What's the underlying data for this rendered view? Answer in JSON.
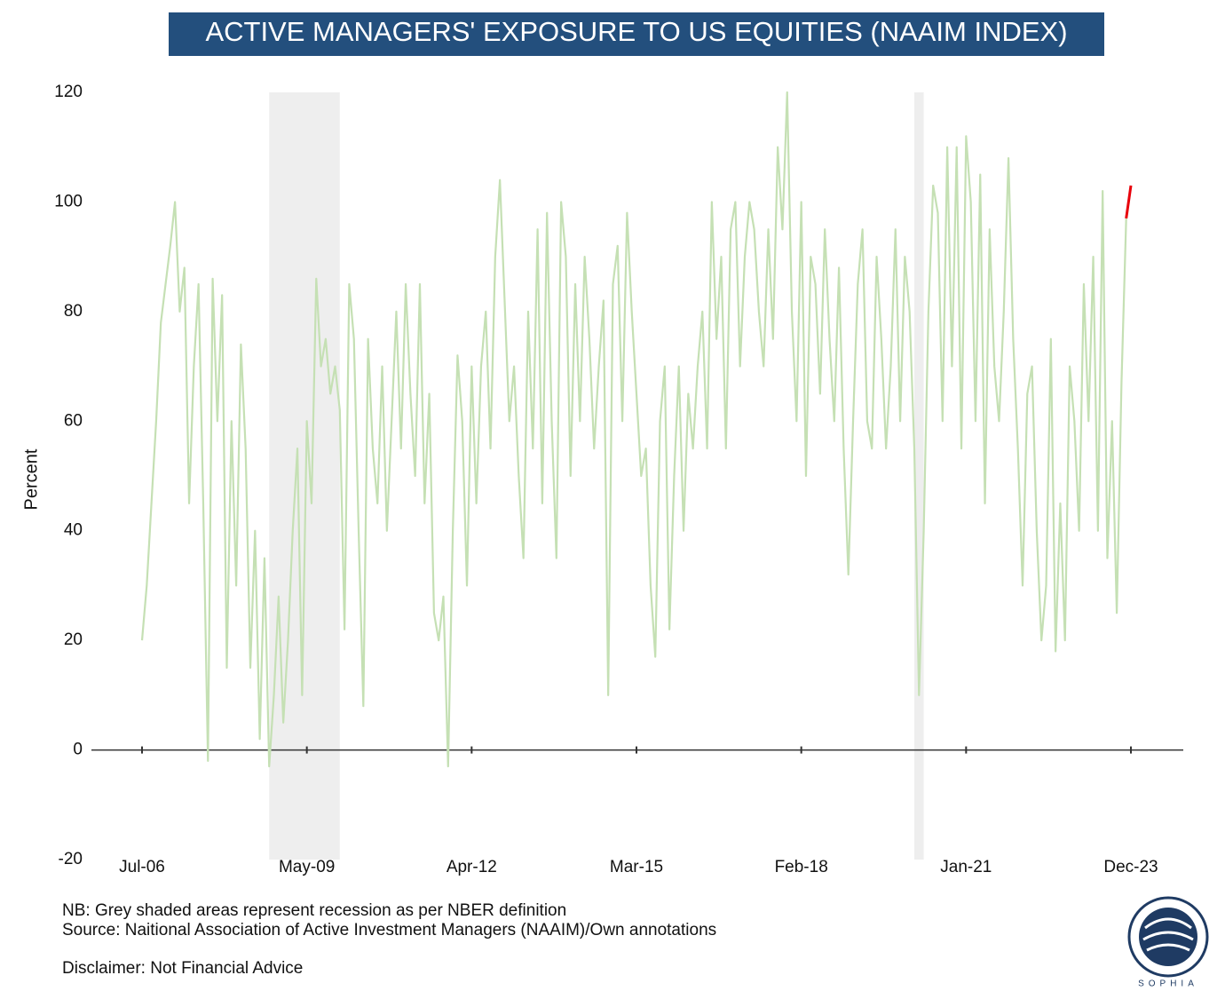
{
  "chart_data": {
    "type": "line",
    "title": "ACTIVE MANAGERS' EXPOSURE TO US EQUITIES (NAAIM INDEX)",
    "ylabel": "Percent",
    "xlim": [
      0,
      210
    ],
    "xticks": [
      {
        "value": 0,
        "label": "Jul-06"
      },
      {
        "value": 35,
        "label": "May-09"
      },
      {
        "value": 70,
        "label": "Apr-12"
      },
      {
        "value": 105,
        "label": "Mar-15"
      },
      {
        "value": 140,
        "label": "Feb-18"
      },
      {
        "value": 175,
        "label": "Jan-21"
      },
      {
        "value": 210,
        "label": "Dec-23"
      }
    ],
    "ylim": [
      -20,
      120
    ],
    "yticks": [
      -20,
      0,
      20,
      40,
      60,
      80,
      100,
      120
    ],
    "grid": false,
    "recessions": [
      [
        27,
        42
      ],
      [
        164,
        166
      ]
    ],
    "series": [
      {
        "color": "#c5e0b4",
        "values": [
          20,
          30,
          45,
          60,
          78,
          85,
          92,
          100,
          80,
          88,
          45,
          70,
          85,
          45,
          -2,
          86,
          60,
          83,
          15,
          60,
          30,
          74,
          55,
          15,
          40,
          2,
          35,
          -3,
          10,
          28,
          5,
          20,
          40,
          55,
          10,
          60,
          45,
          86,
          70,
          75,
          65,
          70,
          62,
          22,
          85,
          75,
          40,
          8,
          75,
          55,
          45,
          70,
          40,
          60,
          80,
          55,
          85,
          65,
          50,
          85,
          45,
          65,
          25,
          20,
          28,
          -3,
          40,
          72,
          60,
          30,
          70,
          45,
          70,
          80,
          55,
          90,
          104,
          82,
          60,
          70,
          50,
          35,
          80,
          55,
          95,
          45,
          98,
          60,
          35,
          100,
          90,
          50,
          85,
          60,
          90,
          75,
          55,
          70,
          82,
          10,
          85,
          92,
          60,
          98,
          80,
          65,
          50,
          55,
          30,
          17,
          60,
          70,
          22,
          50,
          70,
          40,
          65,
          55,
          70,
          80,
          55,
          100,
          75,
          90,
          55,
          95,
          100,
          70,
          90,
          100,
          95,
          80,
          70,
          95,
          75,
          110,
          95,
          120,
          80,
          60,
          100,
          50,
          90,
          85,
          65,
          95,
          75,
          60,
          88,
          55,
          32,
          60,
          85,
          95,
          60,
          55,
          90,
          75,
          55,
          70,
          95,
          60,
          90,
          80,
          55,
          10,
          40,
          80,
          103,
          98,
          60,
          110,
          70,
          110,
          55,
          112,
          100,
          60,
          105,
          45,
          95,
          70,
          60,
          80,
          108,
          75,
          55,
          30,
          65,
          70,
          40,
          20,
          30,
          75,
          18,
          45,
          20,
          70,
          60,
          40,
          85,
          60,
          90,
          40,
          102,
          35,
          60,
          25,
          67,
          97
        ]
      },
      {
        "color": "#e8000b",
        "x": [
          209,
          210
        ],
        "values": [
          97,
          103
        ]
      }
    ],
    "notes": [
      "NB: Grey shaded areas represent recession as per NBER definition",
      "Source: Naitional Association of Active Investment Managers (NAAIM)/Own annotations",
      "Disclaimer: Not Financial Advice"
    ],
    "logo_text": "SOPHIA"
  }
}
